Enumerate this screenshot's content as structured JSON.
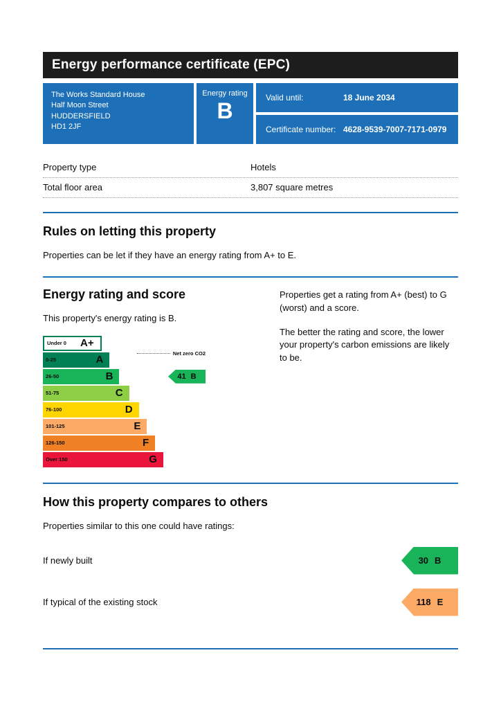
{
  "header": {
    "title": "Energy performance certificate (EPC)"
  },
  "summary": {
    "address_lines": [
      "The Works Standard House",
      "Half Moon Street",
      "HUDDERSFIELD",
      "HD1 2JF"
    ],
    "energy_rating_label": "Energy rating",
    "energy_rating": "B",
    "valid_until_label": "Valid until:",
    "valid_until": "18 June 2034",
    "certificate_number_label": "Certificate number:",
    "certificate_number": "4628-9539-7007-7171-0979"
  },
  "property_details": {
    "rows": [
      {
        "label": "Property type",
        "value": "Hotels"
      },
      {
        "label": "Total floor area",
        "value": "3,807 square metres"
      }
    ]
  },
  "rules": {
    "heading": "Rules on letting this property",
    "body": "Properties can be let if they have an energy rating from A+ to E."
  },
  "rating_section": {
    "heading": "Energy rating and score",
    "intro": "This property's energy rating is B.",
    "right_para1": "Properties get a rating from A+ (best) to G (worst) and a score.",
    "right_para2": "The better the rating and score, the lower your property's carbon emissions are likely to be."
  },
  "chart_data": {
    "type": "epc-bands",
    "net_zero_label": "Net zero CO2",
    "bands": [
      {
        "range": "Under 0",
        "letter": "A+",
        "color": "#ffffff",
        "outline": "#008054",
        "width_pct": 36
      },
      {
        "range": "0-25",
        "letter": "A",
        "color": "#008054",
        "width_pct": 41
      },
      {
        "range": "26-50",
        "letter": "B",
        "color": "#19b459",
        "width_pct": 47
      },
      {
        "range": "51-75",
        "letter": "C",
        "color": "#8dce46",
        "width_pct": 53
      },
      {
        "range": "76-100",
        "letter": "D",
        "color": "#ffd500",
        "width_pct": 59
      },
      {
        "range": "101-125",
        "letter": "E",
        "color": "#fcaa65",
        "width_pct": 64
      },
      {
        "range": "126-150",
        "letter": "F",
        "color": "#ef8023",
        "width_pct": 69
      },
      {
        "range": "Over 150",
        "letter": "G",
        "color": "#e9153b",
        "width_pct": 74
      }
    ],
    "current": {
      "score": "41",
      "letter": "B",
      "color": "#19b459",
      "band_index": 2
    }
  },
  "compare_section": {
    "heading": "How this property compares to others",
    "intro": "Properties similar to this one could have ratings:",
    "items": [
      {
        "label": "If newly built",
        "score": "30",
        "letter": "B",
        "color": "#19b459"
      },
      {
        "label": "If typical of the existing stock",
        "score": "118",
        "letter": "E",
        "color": "#fcaa65"
      }
    ]
  },
  "colors": {
    "accent_blue": "#1d70b8",
    "header_bg": "#1d1d1d"
  }
}
